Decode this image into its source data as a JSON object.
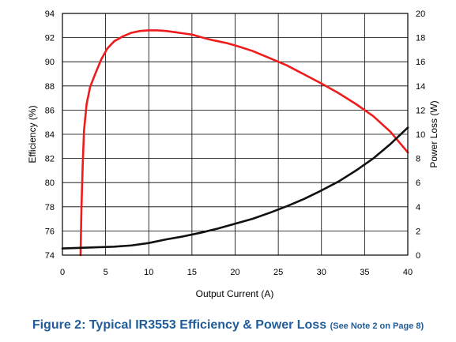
{
  "chart_data": {
    "type": "line",
    "title": "",
    "xlabel": "Output Current (A)",
    "ylabel_left": "Efficiency (%)",
    "ylabel_right": "Power Loss (W)",
    "xlim": [
      0,
      40
    ],
    "ylim_left": [
      74,
      94
    ],
    "ylim_right": [
      0,
      20
    ],
    "x_ticks": [
      0,
      5,
      10,
      15,
      20,
      25,
      30,
      35,
      40
    ],
    "y_ticks_left": [
      74,
      76,
      78,
      80,
      82,
      84,
      86,
      88,
      90,
      92,
      94
    ],
    "y_ticks_right": [
      0,
      2,
      4,
      6,
      8,
      10,
      12,
      14,
      16,
      18,
      20
    ],
    "grid": true,
    "legend": "none",
    "series": [
      {
        "axis": "left",
        "color": "#ee1c1c",
        "x": [
          2.1,
          2.2,
          2.35,
          2.5,
          2.8,
          3.2,
          3.8,
          4.5,
          5.2,
          6,
          7,
          8,
          9,
          10,
          11,
          12,
          13,
          14,
          15,
          16,
          17,
          18,
          19,
          20,
          22,
          24,
          26,
          28,
          30,
          32,
          34,
          36,
          38,
          40
        ],
        "values": [
          74.0,
          77.8,
          81.5,
          84.3,
          86.5,
          87.9,
          89.0,
          90.2,
          91.1,
          91.7,
          92.1,
          92.4,
          92.55,
          92.6,
          92.6,
          92.55,
          92.45,
          92.35,
          92.25,
          92.05,
          91.85,
          91.7,
          91.55,
          91.35,
          90.9,
          90.3,
          89.7,
          88.95,
          88.2,
          87.4,
          86.5,
          85.5,
          84.2,
          82.5
        ]
      },
      {
        "axis": "right",
        "color": "#111111",
        "x": [
          0,
          2,
          4,
          6,
          8,
          10,
          12,
          14,
          16,
          18,
          20,
          22,
          24,
          26,
          28,
          30,
          32,
          34,
          36,
          38,
          40
        ],
        "values": [
          0.55,
          0.6,
          0.65,
          0.7,
          0.8,
          1.0,
          1.3,
          1.55,
          1.85,
          2.2,
          2.6,
          3.0,
          3.5,
          4.05,
          4.65,
          5.35,
          6.1,
          7.0,
          8.0,
          9.2,
          10.55
        ]
      }
    ]
  },
  "caption": {
    "main": "Figure 2: Typical IR3553 Efficiency & Power Loss",
    "note": "(See Note 2 on Page 8)"
  }
}
